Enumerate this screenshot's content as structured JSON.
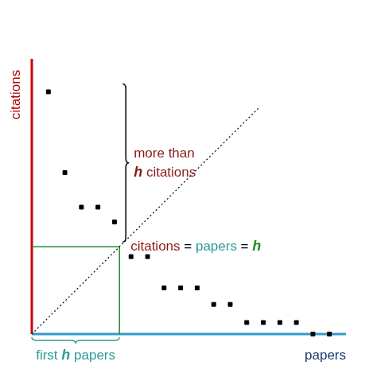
{
  "chart_data": {
    "type": "scatter",
    "y_label": "citations",
    "x_label": "papers",
    "x": [
      1,
      2,
      3,
      4,
      5,
      6,
      7,
      8,
      9,
      10,
      11,
      12,
      13,
      14,
      15,
      16,
      17,
      18
    ],
    "values": [
      14.7,
      9.8,
      7.7,
      7.7,
      6.8,
      4.7,
      4.7,
      2.8,
      2.8,
      2.8,
      1.8,
      1.8,
      0.7,
      0.7,
      0.7,
      0.7,
      0,
      0
    ],
    "color": "#000000",
    "marker": "square",
    "xlim": [
      0,
      19
    ],
    "ylim": [
      0,
      16.7
    ],
    "tick_labels": false,
    "grid": false,
    "reference_line": {
      "x": [
        0,
        13.8
      ],
      "values": [
        0,
        13.8
      ],
      "line_style": "dotted",
      "color": "#000000"
    },
    "h_line": {
      "value": 5.3,
      "color": "#228b22"
    },
    "annotations": [
      {
        "parts": [
          {
            "text": "more than",
            "color": "#8b1a1a"
          },
          {
            "text": "h",
            "color": "#8b1a1a"
          },
          {
            "text": "citations",
            "color": "#8b1a1a"
          }
        ]
      },
      {
        "parts": [
          {
            "text": "citations",
            "color": "#8b1a1a"
          },
          {
            "text": "=",
            "color": "#000000"
          },
          {
            "text": "papers",
            "color": "#2e9a9a"
          },
          {
            "text": "=",
            "color": "#000000"
          },
          {
            "text": "h",
            "color": "#228b22"
          }
        ]
      },
      {
        "parts": [
          {
            "text": "first",
            "color": "#2e9a9a"
          },
          {
            "text": "h",
            "color": "#2e9a9a"
          },
          {
            "text": "papers",
            "color": "#2e9a9a"
          }
        ]
      }
    ]
  }
}
